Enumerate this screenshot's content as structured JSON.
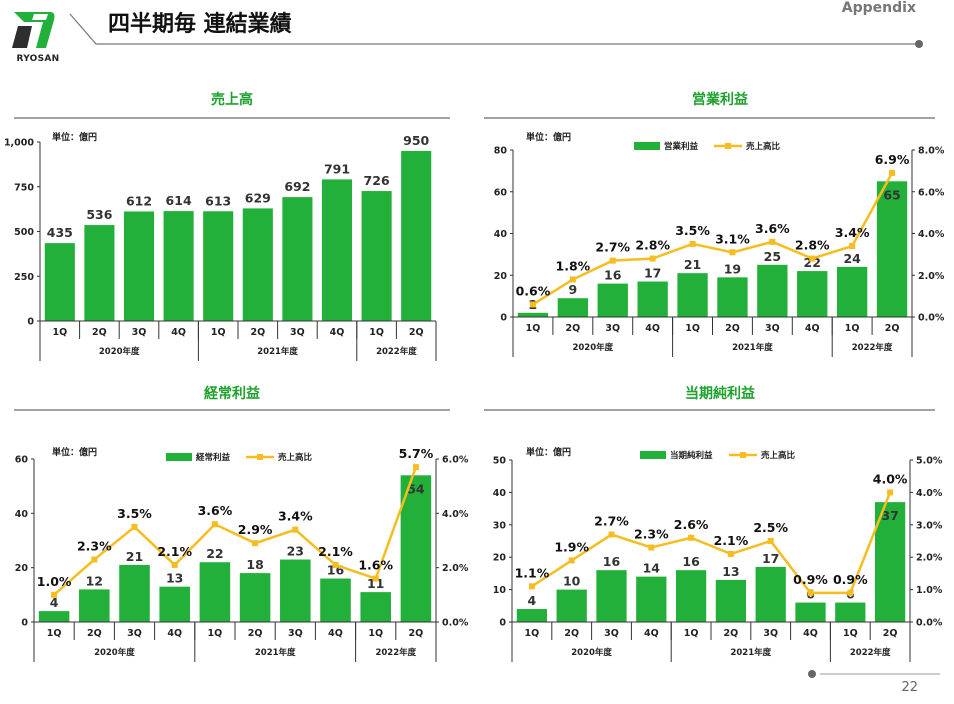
{
  "header": {
    "company": "RYOSAN",
    "title": "四半期毎 連結業績",
    "appendix": "Appendix",
    "page_number": "22"
  },
  "colors": {
    "bar": "#22b03a",
    "line": "#f5bd1f",
    "title": "#1fa12e"
  },
  "chart_data": [
    {
      "id": "sales",
      "type": "bar",
      "title": "売上高",
      "unit_label": "単位：億円",
      "categories": [
        "1Q",
        "2Q",
        "3Q",
        "4Q",
        "1Q",
        "2Q",
        "3Q",
        "4Q",
        "1Q",
        "2Q"
      ],
      "groups": [
        {
          "label": "2020年度",
          "count": 4
        },
        {
          "label": "2021年度",
          "count": 4
        },
        {
          "label": "2022年度",
          "count": 2
        }
      ],
      "values": [
        435,
        536,
        612,
        614,
        613,
        629,
        692,
        791,
        726,
        950
      ],
      "value_labels": [
        "435",
        "536",
        "612",
        "614",
        "613",
        "629",
        "692",
        "791",
        "726",
        "950"
      ],
      "ylim": [
        0,
        1000
      ],
      "yticks": [
        0,
        250,
        500,
        750,
        1000
      ],
      "ytick_labels": [
        "0",
        "250",
        "500",
        "750",
        "1,000"
      ]
    },
    {
      "id": "operating",
      "type": "bar+line",
      "title": "営業利益",
      "unit_label": "単位：億円",
      "categories": [
        "1Q",
        "2Q",
        "3Q",
        "4Q",
        "1Q",
        "2Q",
        "3Q",
        "4Q",
        "1Q",
        "2Q"
      ],
      "groups": [
        {
          "label": "2020年度",
          "count": 4
        },
        {
          "label": "2021年度",
          "count": 4
        },
        {
          "label": "2022年度",
          "count": 2
        }
      ],
      "legend": [
        "営業利益",
        "売上高比"
      ],
      "values": [
        2,
        9,
        16,
        17,
        21,
        19,
        25,
        22,
        24,
        65
      ],
      "value_labels": [
        "2",
        "9",
        "16",
        "17",
        "21",
        "19",
        "25",
        "22",
        "24",
        "65"
      ],
      "ratio": [
        0.6,
        1.8,
        2.7,
        2.8,
        3.5,
        3.1,
        3.6,
        2.8,
        3.4,
        6.9
      ],
      "ratio_labels": [
        "0.6%",
        "1.8%",
        "2.7%",
        "2.8%",
        "3.5%",
        "3.1%",
        "3.6%",
        "2.8%",
        "3.4%",
        "6.9%"
      ],
      "ylim": [
        0,
        80
      ],
      "yticks": [
        0,
        20,
        40,
        60,
        80
      ],
      "ytick_labels": [
        "0",
        "20",
        "40",
        "60",
        "80"
      ],
      "y2lim": [
        0,
        8
      ],
      "y2ticks": [
        0,
        2,
        4,
        6,
        8
      ],
      "y2tick_labels": [
        "0.0%",
        "2.0%",
        "4.0%",
        "6.0%",
        "8.0%"
      ]
    },
    {
      "id": "ordinary",
      "type": "bar+line",
      "title": "経常利益",
      "unit_label": "単位：億円",
      "categories": [
        "1Q",
        "2Q",
        "3Q",
        "4Q",
        "1Q",
        "2Q",
        "3Q",
        "4Q",
        "1Q",
        "2Q"
      ],
      "groups": [
        {
          "label": "2020年度",
          "count": 4
        },
        {
          "label": "2021年度",
          "count": 4
        },
        {
          "label": "2022年度",
          "count": 2
        }
      ],
      "legend": [
        "経常利益",
        "売上高比"
      ],
      "values": [
        4,
        12,
        21,
        13,
        22,
        18,
        23,
        16,
        11,
        54
      ],
      "value_labels": [
        "4",
        "12",
        "21",
        "13",
        "22",
        "18",
        "23",
        "16",
        "11",
        "54"
      ],
      "ratio": [
        1.0,
        2.3,
        3.5,
        2.1,
        3.6,
        2.9,
        3.4,
        2.1,
        1.6,
        5.7
      ],
      "ratio_labels": [
        "1.0%",
        "2.3%",
        "3.5%",
        "2.1%",
        "3.6%",
        "2.9%",
        "3.4%",
        "2.1%",
        "1.6%",
        "5.7%"
      ],
      "ylim": [
        0,
        60
      ],
      "yticks": [
        0,
        20,
        40,
        60
      ],
      "ytick_labels": [
        "0",
        "20",
        "40",
        "60"
      ],
      "y2lim": [
        0,
        6
      ],
      "y2ticks": [
        0,
        2,
        4,
        6
      ],
      "y2tick_labels": [
        "0.0%",
        "2.0%",
        "4.0%",
        "6.0%"
      ]
    },
    {
      "id": "net",
      "type": "bar+line",
      "title": "当期純利益",
      "unit_label": "単位：億円",
      "categories": [
        "1Q",
        "2Q",
        "3Q",
        "4Q",
        "1Q",
        "2Q",
        "3Q",
        "4Q",
        "1Q",
        "2Q"
      ],
      "groups": [
        {
          "label": "2020年度",
          "count": 4
        },
        {
          "label": "2021年度",
          "count": 4
        },
        {
          "label": "2022年度",
          "count": 2
        }
      ],
      "legend": [
        "当期純利益",
        "売上高比"
      ],
      "values": [
        4,
        10,
        16,
        14,
        16,
        13,
        17,
        6,
        6,
        37
      ],
      "value_labels": [
        "4",
        "10",
        "16",
        "14",
        "16",
        "13",
        "17",
        "6",
        "6",
        "37"
      ],
      "ratio": [
        1.1,
        1.9,
        2.7,
        2.3,
        2.6,
        2.1,
        2.5,
        0.9,
        0.9,
        4.0
      ],
      "ratio_labels": [
        "1.1%",
        "1.9%",
        "2.7%",
        "2.3%",
        "2.6%",
        "2.1%",
        "2.5%",
        "0.9%",
        "0.9%",
        "4.0%"
      ],
      "ylim": [
        0,
        50
      ],
      "yticks": [
        0,
        10,
        20,
        30,
        40,
        50
      ],
      "ytick_labels": [
        "0",
        "10",
        "20",
        "30",
        "40",
        "50"
      ],
      "y2lim": [
        0,
        5
      ],
      "y2ticks": [
        0,
        1,
        2,
        3,
        4,
        5
      ],
      "y2tick_labels": [
        "0.0%",
        "1.0%",
        "2.0%",
        "3.0%",
        "4.0%",
        "5.0%"
      ]
    }
  ]
}
